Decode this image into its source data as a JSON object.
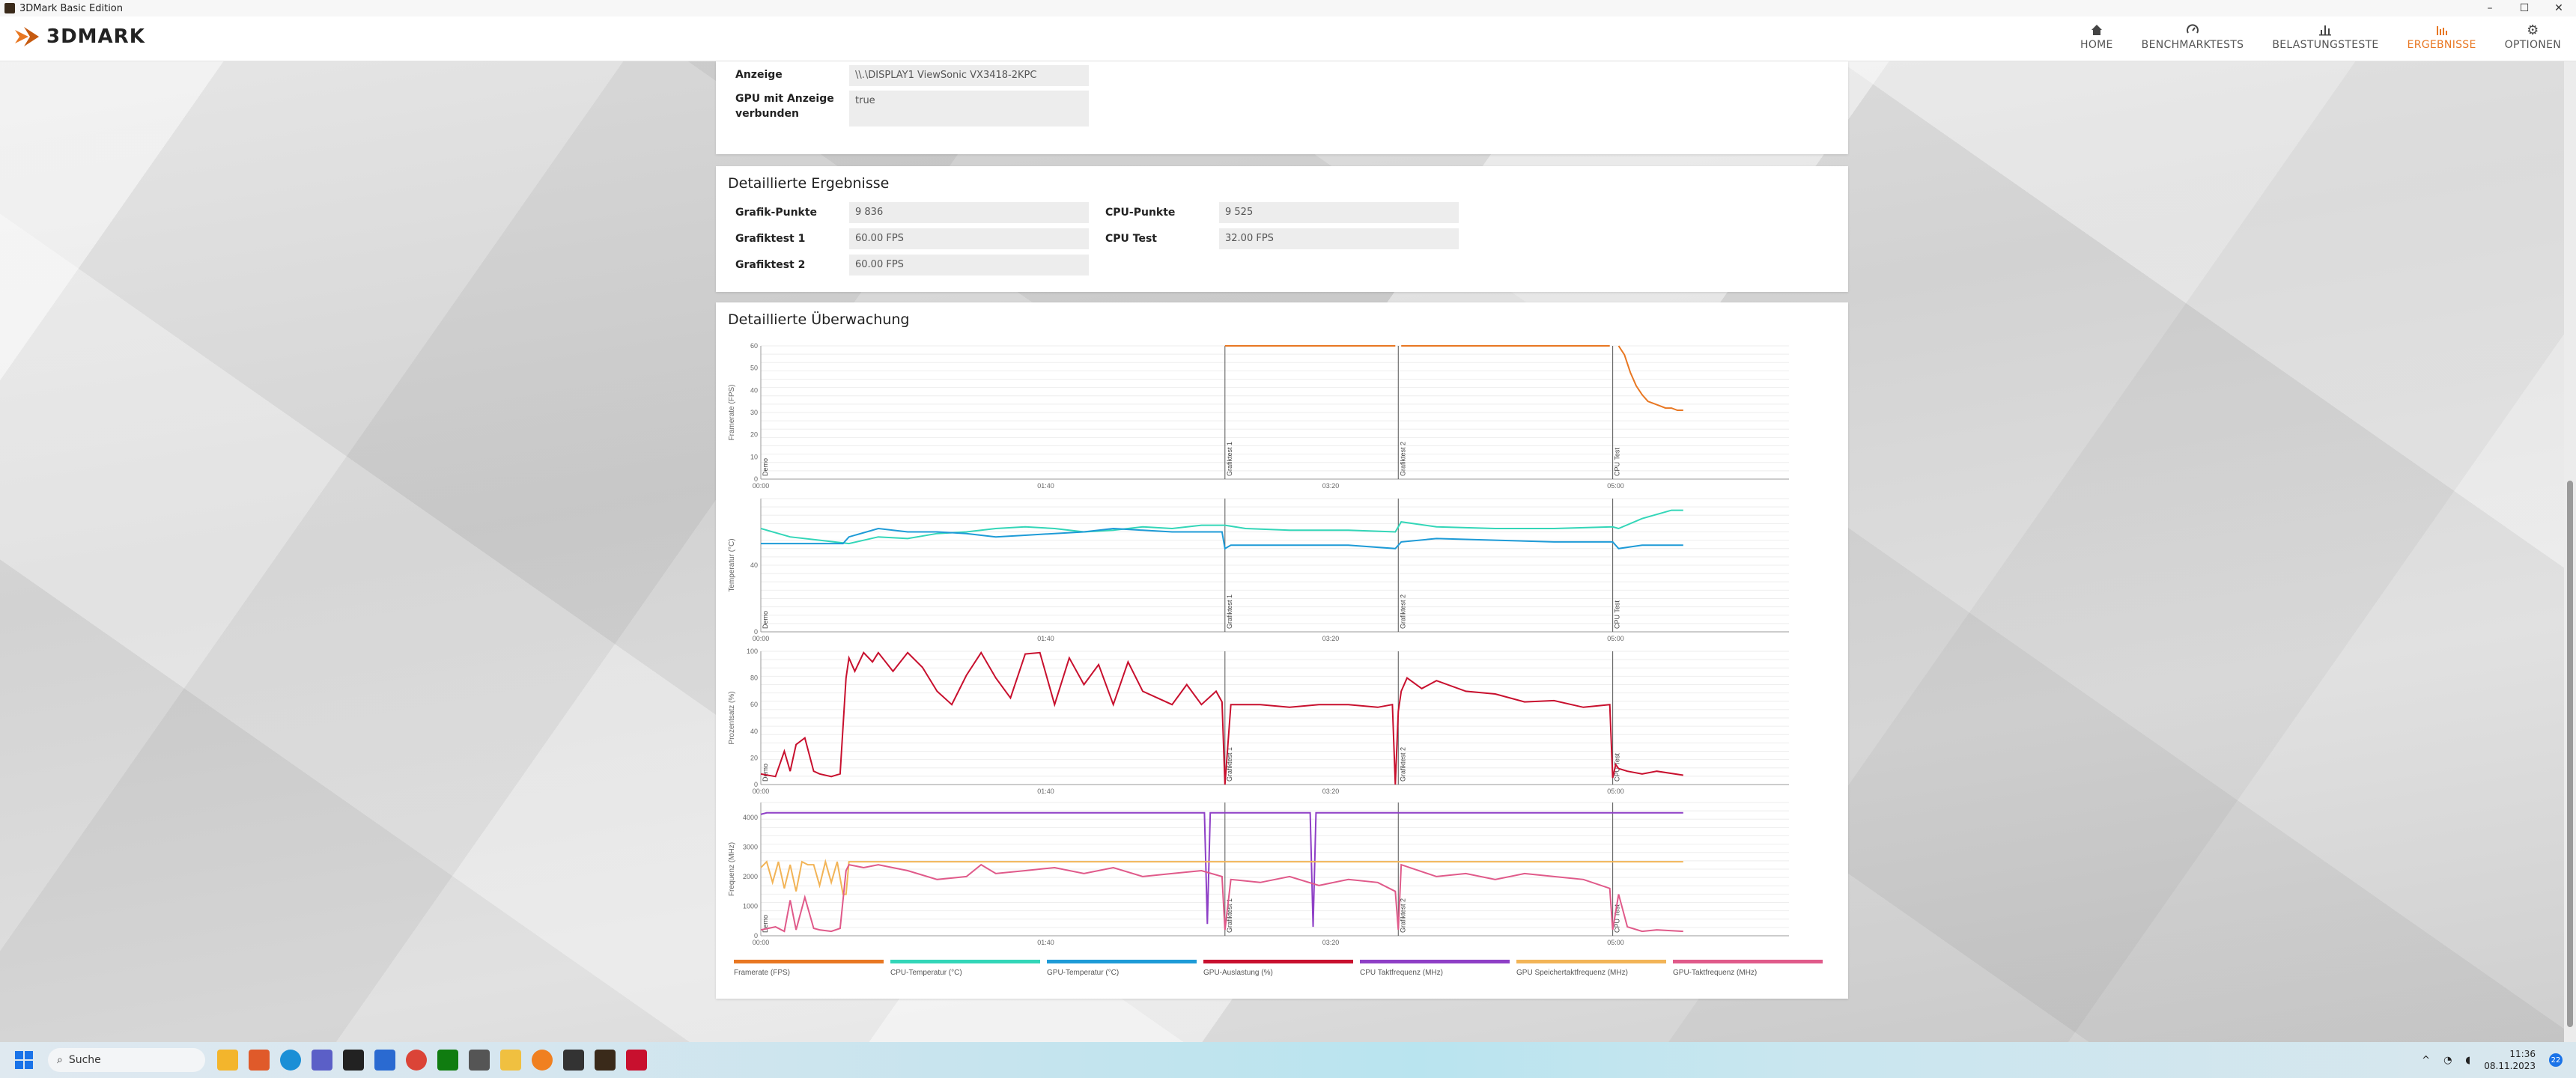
{
  "window": {
    "title": "3DMark Basic Edition",
    "controls": [
      "–",
      "☐",
      "✕"
    ]
  },
  "app": {
    "logo_text": "3DMARK"
  },
  "nav": [
    {
      "label": "HOME",
      "icon": "home-icon",
      "glyph": "⌂",
      "active": false
    },
    {
      "label": "BENCHMARKTESTS",
      "icon": "gauge-icon",
      "glyph": "◠",
      "active": false
    },
    {
      "label": "BELASTUNGSTESTE",
      "icon": "bars-icon",
      "glyph": "▁▃▅",
      "active": false
    },
    {
      "label": "ERGEBNISSE",
      "icon": "results-icon",
      "glyph": "▂▆▄",
      "active": true
    },
    {
      "label": "OPTIONEN",
      "icon": "gear-icon",
      "glyph": "⚙",
      "active": false
    }
  ],
  "system": {
    "rows": [
      {
        "label": "Anzeige",
        "value": "\\\\.\\DISPLAY1 ViewSonic VX3418-2KPC"
      },
      {
        "label": "GPU mit Anzeige verbunden",
        "value": "true"
      }
    ]
  },
  "detailed": {
    "title": "Detaillierte Ergebnisse",
    "left": [
      {
        "label": "Grafik-Punkte",
        "value": "9 836"
      },
      {
        "label": "Grafiktest 1",
        "value": "60.00 FPS"
      },
      {
        "label": "Grafiktest 2",
        "value": "60.00 FPS"
      }
    ],
    "right": [
      {
        "label": "CPU-Punkte",
        "value": "9 525"
      },
      {
        "label": "CPU Test",
        "value": "32.00 FPS"
      }
    ]
  },
  "monitoring": {
    "title": "Detaillierte Überwachung"
  },
  "chart_data": [
    {
      "type": "line",
      "ylabel": "Framerate (FPS)",
      "ylim": [
        0,
        60
      ],
      "yticks": [
        0,
        10,
        20,
        30,
        40,
        50,
        60
      ],
      "xticks": [
        "00:00",
        "01:40",
        "03:20",
        "05:00"
      ],
      "sections": [
        "Demo",
        "Grafiktest 1",
        "Grafiktest 2",
        "CPU Test"
      ],
      "section_x": [
        0,
        158,
        217,
        290
      ],
      "xlim": [
        0,
        350
      ],
      "series": [
        {
          "name": "Framerate (FPS)",
          "color": "#e87722",
          "x": [
            158,
            160,
            216,
            217,
            218,
            289,
            290,
            292,
            294,
            296,
            298,
            300,
            302,
            304,
            306,
            308,
            310,
            312,
            314
          ],
          "y": [
            60,
            60,
            60,
            null,
            60,
            60,
            null,
            60,
            56,
            48,
            42,
            38,
            35,
            34,
            33,
            32,
            32,
            31,
            31
          ]
        }
      ]
    },
    {
      "type": "line",
      "ylabel": "Temperatur (°C)",
      "ylim": [
        0,
        80
      ],
      "yticks": [
        0,
        40
      ],
      "xticks": [
        "00:00",
        "01:40",
        "03:20",
        "05:00"
      ],
      "sections": [
        "Demo",
        "Grafiktest 1",
        "Grafiktest 2",
        "CPU Test"
      ],
      "section_x": [
        0,
        158,
        217,
        290
      ],
      "xlim": [
        0,
        350
      ],
      "series": [
        {
          "name": "CPU-Temperatur (°C)",
          "color": "#33d6b8",
          "x": [
            0,
            10,
            20,
            30,
            40,
            50,
            60,
            70,
            80,
            90,
            100,
            110,
            120,
            130,
            140,
            150,
            158,
            165,
            180,
            200,
            216,
            218,
            230,
            250,
            270,
            290,
            292,
            300,
            310,
            314
          ],
          "y": [
            62,
            57,
            55,
            53,
            57,
            56,
            59,
            60,
            62,
            63,
            62,
            60,
            61,
            63,
            62,
            64,
            64,
            62,
            61,
            61,
            60,
            66,
            63,
            62,
            62,
            63,
            62,
            68,
            73,
            73
          ]
        },
        {
          "name": "GPU-Temperatur (°C)",
          "color": "#1e9bd7",
          "x": [
            0,
            10,
            20,
            28,
            30,
            40,
            50,
            60,
            70,
            80,
            90,
            100,
            110,
            120,
            130,
            140,
            150,
            157,
            158,
            160,
            180,
            200,
            216,
            218,
            230,
            250,
            270,
            290,
            292,
            300,
            314
          ],
          "y": [
            53,
            53,
            53,
            53,
            57,
            62,
            60,
            60,
            59,
            57,
            58,
            59,
            60,
            62,
            61,
            60,
            60,
            60,
            50,
            52,
            52,
            52,
            50,
            54,
            56,
            55,
            54,
            54,
            50,
            52,
            52
          ]
        }
      ]
    },
    {
      "type": "line",
      "ylabel": "Prozentsatz (%)",
      "ylim": [
        0,
        100
      ],
      "yticks": [
        0,
        20,
        40,
        60,
        80,
        100
      ],
      "xticks": [
        "00:00",
        "01:40",
        "03:20",
        "05:00"
      ],
      "sections": [
        "Demo",
        "Grafiktest 1",
        "Grafiktest 2",
        "CPU Test"
      ],
      "section_x": [
        0,
        158,
        217,
        290
      ],
      "xlim": [
        0,
        350
      ],
      "series": [
        {
          "name": "GPU-Auslastung (%)",
          "color": "#c8102e",
          "x": [
            0,
            5,
            8,
            10,
            12,
            15,
            18,
            20,
            24,
            27,
            29,
            30,
            32,
            35,
            38,
            40,
            45,
            50,
            55,
            60,
            65,
            70,
            75,
            80,
            85,
            90,
            95,
            100,
            105,
            110,
            115,
            120,
            125,
            130,
            135,
            140,
            145,
            150,
            155,
            157,
            158,
            160,
            170,
            180,
            190,
            200,
            210,
            215,
            216,
            217,
            218,
            220,
            225,
            230,
            240,
            250,
            260,
            270,
            280,
            289,
            290,
            291,
            292,
            295,
            300,
            305,
            314
          ],
          "y": [
            8,
            6,
            25,
            10,
            30,
            35,
            10,
            8,
            6,
            8,
            80,
            95,
            85,
            99,
            92,
            99,
            85,
            99,
            88,
            70,
            60,
            82,
            99,
            80,
            65,
            98,
            99,
            60,
            95,
            75,
            90,
            60,
            92,
            70,
            65,
            60,
            75,
            60,
            70,
            62,
            0,
            60,
            60,
            58,
            60,
            60,
            58,
            60,
            0,
            55,
            70,
            80,
            72,
            78,
            70,
            68,
            62,
            63,
            58,
            60,
            5,
            15,
            12,
            10,
            8,
            10,
            7
          ]
        }
      ]
    },
    {
      "type": "line",
      "ylabel": "Frequenz (MHz)",
      "ylim": [
        0,
        4500
      ],
      "yticks": [
        0,
        1000,
        2000,
        3000,
        4000
      ],
      "xticks": [
        "00:00",
        "01:40",
        "03:20",
        "05:00"
      ],
      "sections": [
        "Demo",
        "Grafiktest 1",
        "Grafiktest 2",
        "CPU Test"
      ],
      "section_x": [
        0,
        158,
        217,
        290
      ],
      "xlim": [
        0,
        350
      ],
      "series": [
        {
          "name": "CPU Taktfrequenz (MHz)",
          "color": "#8e3fc6",
          "x": [
            0,
            2,
            4,
            150,
            151,
            152,
            153,
            154,
            155,
            186,
            187,
            188,
            189,
            190,
            314
          ],
          "y": [
            4100,
            4150,
            4150,
            4150,
            4150,
            400,
            4150,
            4150,
            4150,
            4150,
            4150,
            300,
            4150,
            4150,
            4150
          ]
        },
        {
          "name": "GPU Speichertaktfrequenz (MHz)",
          "color": "#f2b457",
          "x": [
            0,
            2,
            4,
            6,
            8,
            10,
            12,
            14,
            16,
            18,
            20,
            22,
            24,
            26,
            28,
            29,
            30,
            32,
            35,
            40,
            60,
            80,
            100,
            120,
            140,
            158,
            160,
            314
          ],
          "y": [
            2300,
            2500,
            1800,
            2500,
            1600,
            2400,
            1500,
            2500,
            2400,
            2400,
            1700,
            2500,
            1800,
            2500,
            1400,
            1400,
            2500,
            2500,
            2500,
            2500,
            2500,
            2500,
            2500,
            2500,
            2500,
            2500,
            2500,
            2500
          ]
        },
        {
          "name": "GPU-Taktfrequenz (MHz)",
          "color": "#e05a8a",
          "x": [
            0,
            5,
            8,
            10,
            12,
            15,
            18,
            20,
            24,
            27,
            29,
            30,
            35,
            40,
            50,
            60,
            70,
            75,
            80,
            90,
            100,
            110,
            120,
            130,
            140,
            150,
            157,
            158,
            160,
            170,
            180,
            190,
            200,
            210,
            216,
            217,
            218,
            230,
            240,
            250,
            260,
            270,
            280,
            289,
            290,
            292,
            295,
            300,
            305,
            314
          ],
          "y": [
            200,
            300,
            150,
            1200,
            200,
            1300,
            250,
            200,
            150,
            250,
            2200,
            2400,
            2300,
            2400,
            2200,
            1900,
            2000,
            2400,
            2100,
            2200,
            2300,
            2100,
            2300,
            2000,
            2100,
            2200,
            2000,
            200,
            1900,
            1800,
            2000,
            1700,
            1900,
            1800,
            1500,
            200,
            2400,
            2000,
            2100,
            1900,
            2100,
            2000,
            1900,
            1600,
            200,
            1400,
            300,
            150,
            200,
            150
          ]
        }
      ]
    }
  ],
  "legend": [
    {
      "label": "Framerate (FPS)",
      "color": "#e87722"
    },
    {
      "label": "CPU-Temperatur (°C)",
      "color": "#33d6b8"
    },
    {
      "label": "GPU-Temperatur (°C)",
      "color": "#1e9bd7"
    },
    {
      "label": "GPU-Auslastung (%)",
      "color": "#c8102e"
    },
    {
      "label": "CPU Taktfrequenz (MHz)",
      "color": "#8e3fc6"
    },
    {
      "label": "GPU Speichertaktfrequenz (MHz)",
      "color": "#f2b457"
    },
    {
      "label": "GPU-Taktfrequenz (MHz)",
      "color": "#e05a8a"
    }
  ],
  "taskbar": {
    "search_placeholder": "Suche",
    "notification_count": "1",
    "time": "11:36",
    "date": "08.11.2023",
    "badge": "22"
  }
}
